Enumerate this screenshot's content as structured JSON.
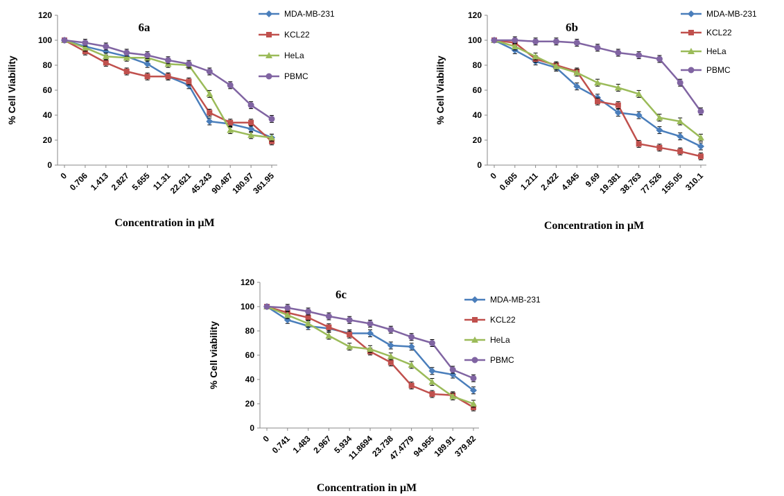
{
  "chart_data": [
    {
      "type": "line",
      "title": "6a",
      "xlabel": "Concentration in µM",
      "ylabel": "% Cell Viability",
      "ylim": [
        0,
        120
      ],
      "yticks": [
        0,
        20,
        40,
        60,
        80,
        100,
        120
      ],
      "categories": [
        "0",
        "0.706",
        "1.413",
        "2.827",
        "5.655",
        "11.31",
        "22.621",
        "45.243",
        "90.487",
        "180.97",
        "361.95"
      ],
      "legend": "right",
      "series": [
        {
          "name": "MDA-MB-231",
          "color": "#4a7ebb",
          "marker": "diamond",
          "values": [
            100,
            95,
            91,
            87,
            81,
            71,
            64,
            35,
            33,
            29,
            22
          ]
        },
        {
          "name": "KCL22",
          "color": "#c0504d",
          "marker": "square",
          "values": [
            100,
            91,
            82,
            75,
            71,
            71,
            67,
            42,
            34,
            34,
            19
          ]
        },
        {
          "name": "HeLa",
          "color": "#9bbb59",
          "marker": "triangle",
          "values": [
            100,
            94,
            87,
            86,
            86,
            81,
            80,
            57,
            28,
            24,
            22
          ]
        },
        {
          "name": "PBMC",
          "color": "#8064a2",
          "marker": "circle",
          "values": [
            100,
            98,
            95,
            90,
            88,
            84,
            81,
            75,
            64,
            48,
            37
          ]
        }
      ]
    },
    {
      "type": "line",
      "title": "6b",
      "xlabel": "Concentration in µM",
      "ylabel": "% Cell Viability",
      "ylim": [
        0,
        120
      ],
      "yticks": [
        0,
        20,
        40,
        60,
        80,
        100,
        120
      ],
      "categories": [
        "0",
        "0.605",
        "1.211",
        "2.422",
        "4.845",
        "9.69",
        "19.381",
        "38.763",
        "77.526",
        "155.05",
        "310.1"
      ],
      "legend": "right",
      "series": [
        {
          "name": "MDA-MB-231",
          "color": "#4a7ebb",
          "marker": "diamond",
          "values": [
            100,
            92,
            83,
            78,
            63,
            54,
            42,
            40,
            28,
            23,
            15
          ]
        },
        {
          "name": "KCL22",
          "color": "#c0504d",
          "marker": "square",
          "values": [
            100,
            98,
            85,
            80,
            75,
            51,
            48,
            17,
            14,
            11,
            7
          ]
        },
        {
          "name": "HeLa",
          "color": "#9bbb59",
          "marker": "triangle",
          "values": [
            100,
            95,
            87,
            79,
            74,
            66,
            62,
            57,
            38,
            35,
            22
          ]
        },
        {
          "name": "PBMC",
          "color": "#8064a2",
          "marker": "circle",
          "values": [
            100,
            100,
            99,
            99,
            98,
            94,
            90,
            88,
            85,
            66,
            43
          ]
        }
      ]
    },
    {
      "type": "line",
      "title": "6c",
      "xlabel": "Concentration in µM",
      "ylabel": "% Cell viability",
      "ylim": [
        0,
        120
      ],
      "yticks": [
        0,
        20,
        40,
        60,
        80,
        100,
        120
      ],
      "categories": [
        "0",
        "0.741",
        "1.483",
        "2.967",
        "5.934",
        "11.8694",
        "23.738",
        "47.4779",
        "94.955",
        "189.91",
        "379.82"
      ],
      "legend": "right",
      "series": [
        {
          "name": "MDA-MB-231",
          "color": "#4a7ebb",
          "marker": "diamond",
          "values": [
            100,
            89,
            84,
            82,
            78,
            78,
            68,
            67,
            47,
            44,
            31
          ]
        },
        {
          "name": "KCL22",
          "color": "#c0504d",
          "marker": "square",
          "values": [
            100,
            95,
            91,
            83,
            77,
            63,
            54,
            35,
            28,
            27,
            17
          ]
        },
        {
          "name": "HeLa",
          "color": "#9bbb59",
          "marker": "triangle",
          "values": [
            100,
            93,
            86,
            76,
            67,
            65,
            59,
            52,
            38,
            26,
            20
          ]
        },
        {
          "name": "PBMC",
          "color": "#8064a2",
          "marker": "circle",
          "values": [
            100,
            99,
            96,
            92,
            89,
            86,
            81,
            75,
            70,
            48,
            41
          ]
        }
      ]
    }
  ]
}
